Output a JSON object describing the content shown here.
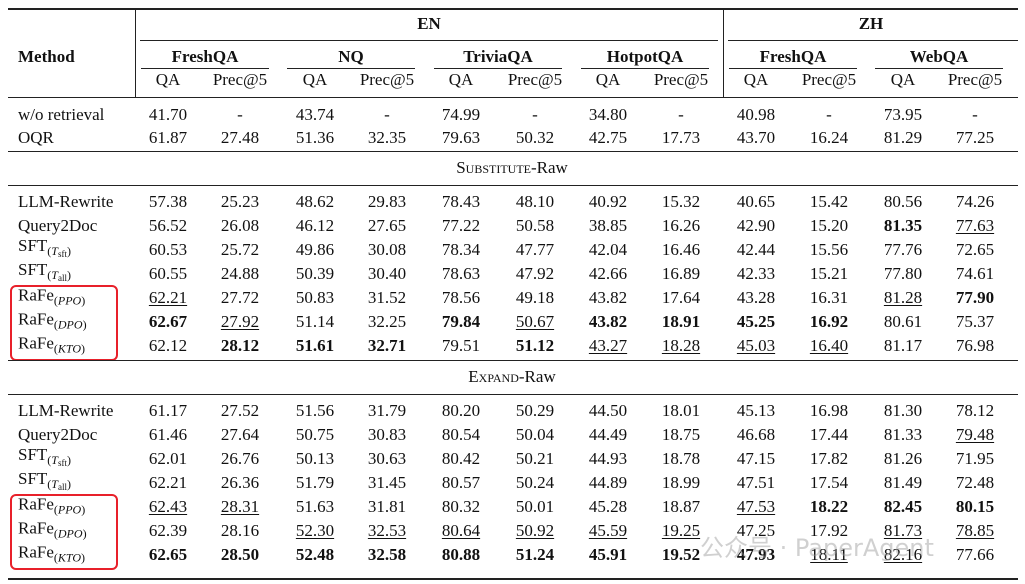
{
  "table": {
    "method_header": "Method",
    "groups": [
      {
        "name": "EN",
        "datasets": [
          {
            "name": "FreshQA",
            "metrics": [
              "QA",
              "Prec@5"
            ]
          },
          {
            "name": "NQ",
            "metrics": [
              "QA",
              "Prec@5"
            ]
          },
          {
            "name": "TriviaQA",
            "metrics": [
              "QA",
              "Prec@5"
            ]
          },
          {
            "name": "HotpotQA",
            "metrics": [
              "QA",
              "Prec@5"
            ]
          }
        ]
      },
      {
        "name": "ZH",
        "datasets": [
          {
            "name": "FreshQA",
            "metrics": [
              "QA",
              "Prec@5"
            ]
          },
          {
            "name": "WebQA",
            "metrics": [
              "QA",
              "Prec@5"
            ]
          }
        ]
      }
    ],
    "sections": [
      {
        "rows": [
          {
            "method": "w/o retrieval",
            "cells": [
              "41.70",
              "-",
              "43.74",
              "-",
              "74.99",
              "-",
              "34.80",
              "-",
              "40.98",
              "-",
              "73.95",
              "-"
            ],
            "bold": [],
            "underline": []
          },
          {
            "method": "OQR",
            "cells": [
              "61.87",
              "27.48",
              "51.36",
              "32.35",
              "79.63",
              "50.32",
              "42.75",
              "17.73",
              "43.70",
              "16.24",
              "81.29",
              "77.25"
            ],
            "bold": [],
            "underline": []
          }
        ]
      },
      {
        "title": {
          "caps": "Substitute",
          "rest": "-Raw"
        },
        "rows": [
          {
            "method": "LLM-Rewrite",
            "cells": [
              "57.38",
              "25.23",
              "48.62",
              "29.83",
              "78.43",
              "48.10",
              "40.92",
              "15.32",
              "40.65",
              "15.42",
              "80.56",
              "74.26"
            ],
            "bold": [],
            "underline": []
          },
          {
            "method": "Query2Doc",
            "cells": [
              "56.52",
              "26.08",
              "46.12",
              "27.65",
              "77.22",
              "50.58",
              "38.85",
              "16.26",
              "42.90",
              "15.20",
              "81.35",
              "77.63"
            ],
            "bold": [
              10
            ],
            "underline": [
              11
            ]
          },
          {
            "method": "SFT",
            "sub": "(",
            "subvar": "T",
            "subidx": "sft",
            "subend": ")",
            "cells": [
              "60.53",
              "25.72",
              "49.86",
              "30.08",
              "78.34",
              "47.77",
              "42.04",
              "16.46",
              "42.44",
              "15.56",
              "77.76",
              "72.65"
            ],
            "bold": [],
            "underline": []
          },
          {
            "method": "SFT",
            "sub": "(",
            "subvar": "T",
            "subidx": "all",
            "subend": ")",
            "cells": [
              "60.55",
              "24.88",
              "50.39",
              "30.40",
              "78.63",
              "47.92",
              "42.66",
              "16.89",
              "42.33",
              "15.21",
              "77.80",
              "74.61"
            ],
            "bold": [],
            "underline": []
          },
          {
            "method": "RaFe",
            "sub": "(",
            "subvar": "PPO",
            "subend": ")",
            "boxed": true,
            "cells": [
              "62.21",
              "27.72",
              "50.83",
              "31.52",
              "78.56",
              "49.18",
              "43.82",
              "17.64",
              "43.28",
              "16.31",
              "81.28",
              "77.90"
            ],
            "bold": [
              11
            ],
            "underline": [
              0,
              10
            ]
          },
          {
            "method": "RaFe",
            "sub": "(",
            "subvar": "DPO",
            "subend": ")",
            "boxed": true,
            "cells": [
              "62.67",
              "27.92",
              "51.14",
              "32.25",
              "79.84",
              "50.67",
              "43.82",
              "18.91",
              "45.25",
              "16.92",
              "80.61",
              "75.37"
            ],
            "bold": [
              0,
              4,
              6,
              7,
              8,
              9
            ],
            "underline": [
              1,
              5
            ]
          },
          {
            "method": "RaFe",
            "sub": "(",
            "subvar": "KTO",
            "subend": ")",
            "boxed": true,
            "cells": [
              "62.12",
              "28.12",
              "51.61",
              "32.71",
              "79.51",
              "51.12",
              "43.27",
              "18.28",
              "45.03",
              "16.40",
              "81.17",
              "76.98"
            ],
            "bold": [
              1,
              2,
              3,
              5
            ],
            "underline": [
              6,
              7,
              8,
              9
            ]
          }
        ]
      },
      {
        "title": {
          "caps": "Expand",
          "rest": "-Raw"
        },
        "rows": [
          {
            "method": "LLM-Rewrite",
            "cells": [
              "61.17",
              "27.52",
              "51.56",
              "31.79",
              "80.20",
              "50.29",
              "44.50",
              "18.01",
              "45.13",
              "16.98",
              "81.30",
              "78.12"
            ],
            "bold": [],
            "underline": []
          },
          {
            "method": "Query2Doc",
            "cells": [
              "61.46",
              "27.64",
              "50.75",
              "30.83",
              "80.54",
              "50.04",
              "44.49",
              "18.75",
              "46.68",
              "17.44",
              "81.33",
              "79.48"
            ],
            "bold": [],
            "underline": [
              11
            ]
          },
          {
            "method": "SFT",
            "sub": "(",
            "subvar": "T",
            "subidx": "sft",
            "subend": ")",
            "cells": [
              "62.01",
              "26.76",
              "50.13",
              "30.63",
              "80.42",
              "50.21",
              "44.93",
              "18.78",
              "47.15",
              "17.82",
              "81.26",
              "71.95"
            ],
            "bold": [],
            "underline": []
          },
          {
            "method": "SFT",
            "sub": "(",
            "subvar": "T",
            "subidx": "all",
            "subend": ")",
            "cells": [
              "62.21",
              "26.36",
              "51.79",
              "31.45",
              "80.57",
              "50.24",
              "44.89",
              "18.99",
              "47.51",
              "17.54",
              "81.49",
              "72.48"
            ],
            "bold": [],
            "underline": []
          },
          {
            "method": "RaFe",
            "sub": "(",
            "subvar": "PPO",
            "subend": ")",
            "boxed": true,
            "cells": [
              "62.43",
              "28.31",
              "51.63",
              "31.81",
              "80.32",
              "50.01",
              "45.28",
              "18.87",
              "47.53",
              "18.22",
              "82.45",
              "80.15"
            ],
            "bold": [
              9,
              10,
              11
            ],
            "underline": [
              0,
              1,
              8
            ]
          },
          {
            "method": "RaFe",
            "sub": "(",
            "subvar": "DPO",
            "subend": ")",
            "boxed": true,
            "cells": [
              "62.39",
              "28.16",
              "52.30",
              "32.53",
              "80.64",
              "50.92",
              "45.59",
              "19.25",
              "47.25",
              "17.92",
              "81.73",
              "78.85"
            ],
            "bold": [],
            "underline": [
              2,
              3,
              4,
              5,
              6,
              7,
              10,
              11
            ]
          },
          {
            "method": "RaFe",
            "sub": "(",
            "subvar": "KTO",
            "subend": ")",
            "boxed": true,
            "cells": [
              "62.65",
              "28.50",
              "52.48",
              "32.58",
              "80.88",
              "51.24",
              "45.91",
              "19.52",
              "47.93",
              "18.11",
              "82.16",
              "77.66"
            ],
            "bold": [
              0,
              1,
              2,
              3,
              4,
              5,
              6,
              7,
              8
            ],
            "underline": [
              9,
              10
            ]
          }
        ]
      }
    ],
    "watermark": "公众号 · PaperAgent"
  }
}
